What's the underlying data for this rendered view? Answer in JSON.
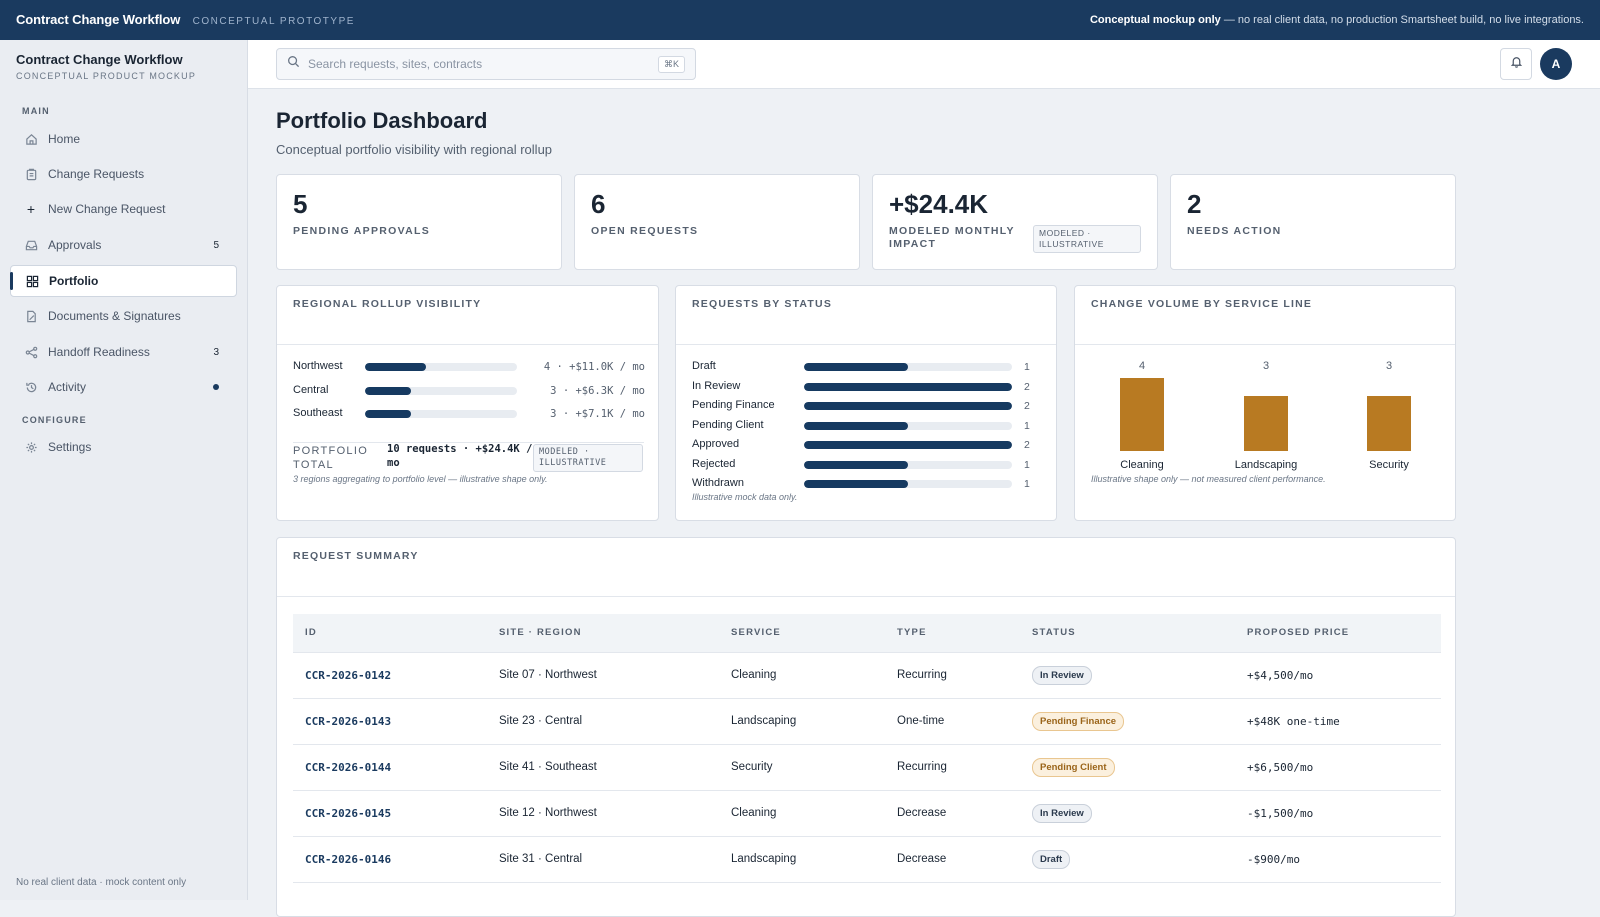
{
  "banner": {
    "brand": "Contract Change Workflow",
    "brand_sub": "CONCEPTUAL PROTOTYPE",
    "notice_bold": "Conceptual mockup only",
    "notice_rest": " — no real client data, no production Smartsheet build, no live integrations."
  },
  "sidebar": {
    "title": "Contract Change Workflow",
    "subtitle": "CONCEPTUAL PRODUCT MOCKUP",
    "section_main": "MAIN",
    "section_configure": "CONFIGURE",
    "items": [
      {
        "label": "Home",
        "icon": "home-icon"
      },
      {
        "label": "Change Requests",
        "icon": "clipboard-icon"
      },
      {
        "label": "New Change Request",
        "icon": "plus-icon"
      },
      {
        "label": "Approvals",
        "icon": "inbox-icon",
        "badge": "5"
      },
      {
        "label": "Portfolio",
        "icon": "grid-icon"
      },
      {
        "label": "Documents & Signatures",
        "icon": "document-sign-icon"
      },
      {
        "label": "Handoff Readiness",
        "icon": "share-icon",
        "badge": "3"
      },
      {
        "label": "Activity",
        "icon": "history-icon"
      },
      {
        "label": "Settings",
        "icon": "gear-icon"
      }
    ],
    "active_item": "Portfolio",
    "footer": "No real client data · mock content only"
  },
  "header": {
    "search_placeholder": "Search requests, sites, contracts",
    "shortcut": "⌘K",
    "avatar_initial": "A"
  },
  "page": {
    "title": "Portfolio Dashboard",
    "subtitle": "Conceptual portfolio visibility with regional rollup"
  },
  "kpis": [
    {
      "value": "5",
      "label": "PENDING APPROVALS"
    },
    {
      "value": "6",
      "label": "OPEN REQUESTS"
    },
    {
      "value": "+$24.4K",
      "label": "MODELED MONTHLY IMPACT",
      "tag": "MODELED · ILLUSTRATIVE"
    },
    {
      "value": "2",
      "label": "NEEDS ACTION"
    }
  ],
  "regional": {
    "title": "REGIONAL ROLLUP VISIBILITY",
    "rows": [
      {
        "name": "Northwest",
        "count": 4,
        "text": "4 · +$11.0K / mo"
      },
      {
        "name": "Central",
        "count": 3,
        "text": "3 · +$6.3K / mo"
      },
      {
        "name": "Southeast",
        "count": 3,
        "text": "3 · +$7.1K / mo"
      }
    ],
    "max": 10,
    "total_label": "PORTFOLIO TOTAL",
    "total_value": "10 requests · +$24.4K / mo",
    "total_tag": "MODELED · ILLUSTRATIVE",
    "note": "3 regions aggregating to portfolio level — illustrative shape only."
  },
  "status_chart": {
    "title": "REQUESTS BY STATUS",
    "rows": [
      {
        "name": "Draft",
        "value": 1
      },
      {
        "name": "In Review",
        "value": 2
      },
      {
        "name": "Pending Finance",
        "value": 2
      },
      {
        "name": "Pending Client",
        "value": 1
      },
      {
        "name": "Approved",
        "value": 2
      },
      {
        "name": "Rejected",
        "value": 1
      },
      {
        "name": "Withdrawn",
        "value": 1
      }
    ],
    "max": 2,
    "note": "Illustrative mock data only."
  },
  "service_chart": {
    "title": "CHANGE VOLUME BY SERVICE LINE",
    "categories": [
      "Cleaning",
      "Landscaping",
      "Security"
    ],
    "values": [
      4,
      3,
      3
    ],
    "max": 4,
    "note": "Illustrative shape only — not measured client performance.",
    "color": "#b87a22"
  },
  "summary": {
    "title": "REQUEST SUMMARY",
    "headers": [
      "ID",
      "SITE · REGION",
      "SERVICE",
      "TYPE",
      "STATUS",
      "PROPOSED PRICE"
    ],
    "rows": [
      {
        "id": "CCR-2026-0142",
        "site": "Site 07 · Northwest",
        "service": "Cleaning",
        "type": "Recurring",
        "status": "In Review",
        "tone": "grey",
        "price": "+$4,500/mo"
      },
      {
        "id": "CCR-2026-0143",
        "site": "Site 23 · Central",
        "service": "Landscaping",
        "type": "One-time",
        "status": "Pending Finance",
        "tone": "amber",
        "price": "+$48K one-time"
      },
      {
        "id": "CCR-2026-0144",
        "site": "Site 41 · Southeast",
        "service": "Security",
        "type": "Recurring",
        "status": "Pending Client",
        "tone": "amber",
        "price": "+$6,500/mo"
      },
      {
        "id": "CCR-2026-0145",
        "site": "Site 12 · Northwest",
        "service": "Cleaning",
        "type": "Decrease",
        "status": "In Review",
        "tone": "grey",
        "price": "-$1,500/mo"
      },
      {
        "id": "CCR-2026-0146",
        "site": "Site 31 · Central",
        "service": "Landscaping",
        "type": "Decrease",
        "status": "Draft",
        "tone": "grey",
        "price": "-$900/mo"
      }
    ]
  }
}
